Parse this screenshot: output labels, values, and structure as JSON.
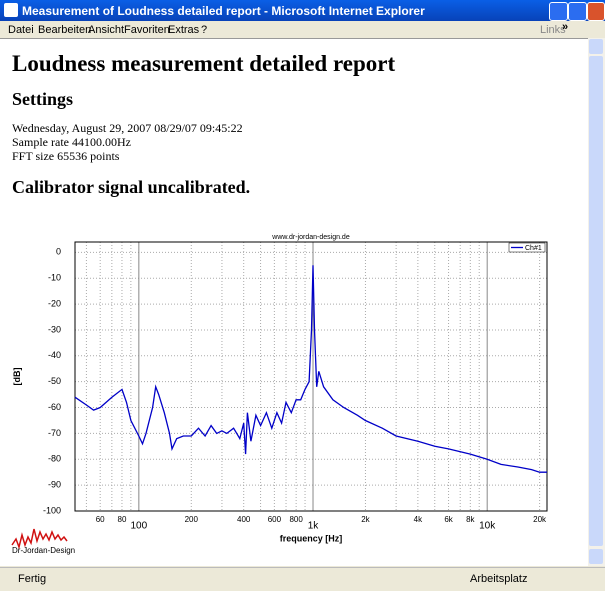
{
  "window": {
    "title": "Measurement of Loudness detailed report - Microsoft Internet Explorer"
  },
  "menu": [
    "Datei",
    "Bearbeiten",
    "Ansicht",
    "Favoriten",
    "Extras",
    "?"
  ],
  "toolbar": {
    "links": "Links",
    "more": "»"
  },
  "report": {
    "title": "Loudness measurement detailed report",
    "settings_heading": "Settings",
    "lines": [
      "Wednesday, August 29, 2007 08/29/07 09:45:22",
      "Sample rate 44100.00Hz",
      "FFT size 65536 points"
    ],
    "calibrator": "Calibrator signal uncalibrated.",
    "logo": "Dr-Jordan-Design"
  },
  "status": {
    "left": "Fertig",
    "zone": "Arbeitsplatz"
  },
  "chart_data": {
    "type": "line",
    "watermark": "www.dr-jordan-design.de",
    "xlabel": "frequency [Hz]",
    "ylabel": "[dB]",
    "log_x": true,
    "grid": true,
    "legend": "upper right",
    "xlim": [
      43,
      22050
    ],
    "ylim": [
      -100,
      4
    ],
    "xticks": [
      60,
      80,
      100,
      200,
      400,
      600,
      800,
      {
        "value": 1000,
        "label": "1k"
      },
      {
        "value": 2000,
        "label": "2k"
      },
      {
        "value": 4000,
        "label": "4k"
      },
      {
        "value": 6000,
        "label": "6k"
      },
      {
        "value": 8000,
        "label": "8k"
      },
      {
        "value": 10000,
        "label": "10k"
      },
      {
        "value": 20000,
        "label": "20k"
      }
    ],
    "xminor": [
      50,
      70,
      90,
      300,
      500,
      700,
      900,
      3000,
      5000,
      7000,
      9000
    ],
    "yticks": [
      0,
      -10,
      -20,
      -30,
      -40,
      -50,
      -60,
      -70,
      -80,
      -90,
      -100
    ],
    "x": [
      43,
      50,
      55,
      60,
      70,
      80,
      85,
      90,
      100,
      105,
      110,
      120,
      125,
      130,
      140,
      150,
      155,
      165,
      180,
      200,
      220,
      240,
      260,
      280,
      300,
      320,
      350,
      380,
      400,
      410,
      420,
      440,
      470,
      500,
      540,
      580,
      620,
      660,
      700,
      750,
      800,
      850,
      900,
      950,
      980,
      1000,
      1020,
      1050,
      1080,
      1150,
      1300,
      1500,
      1800,
      2000,
      2500,
      3000,
      4000,
      5000,
      6000,
      8000,
      10000,
      12000,
      15000,
      18000,
      20000,
      22050
    ],
    "series": [
      {
        "name": "Ch#1",
        "color": "#0000c8",
        "values": [
          -56,
          -59,
          -61,
          -60,
          -56,
          -53,
          -58,
          -65,
          -71,
          -74,
          -70,
          -60,
          -52,
          -55,
          -62,
          -70,
          -76,
          -72,
          -71,
          -71,
          -68,
          -71,
          -67,
          -70,
          -69,
          -70,
          -68,
          -72,
          -66,
          -78,
          -62,
          -73,
          -63,
          -67,
          -62,
          -68,
          -62,
          -66,
          -58,
          -62,
          -57,
          -57,
          -53,
          -50,
          -30,
          -5,
          -30,
          -52,
          -46,
          -52,
          -57,
          -60,
          -63,
          -65,
          -68,
          -71,
          -73,
          -75,
          -76,
          -78,
          -80,
          -82,
          -83,
          -84,
          -85,
          -85
        ]
      }
    ]
  }
}
